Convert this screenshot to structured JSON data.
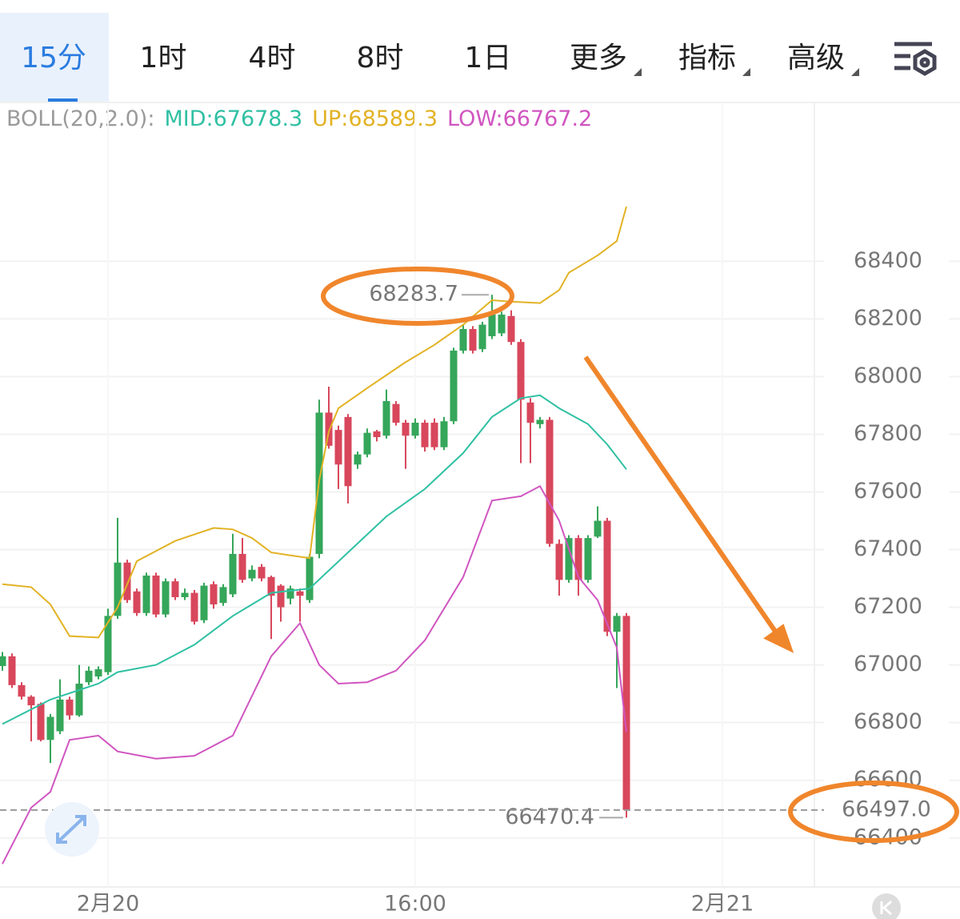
{
  "tabs": [
    "15分",
    "1时",
    "4时",
    "8时",
    "1日",
    "更多",
    "指标",
    "高级"
  ],
  "active_tab": 0,
  "chart_data": {
    "type": "candlestick",
    "indicator": "BOLL(20,2.0):",
    "candles": {
      "up_color": "#35a65a",
      "down_color": "#d8475c",
      "open": [
        66996,
        67030,
        66930,
        66890,
        66865,
        66740,
        66770,
        66880,
        66825,
        66940,
        66960,
        66975,
        67170,
        67355,
        67255,
        67180,
        67310,
        67175,
        67290,
        67235,
        67250,
        67155,
        67280,
        67215,
        67245,
        67385,
        67300,
        67340,
        67305,
        67275,
        67230,
        67255,
        67225,
        67385,
        67875,
        67815,
        67860,
        67695,
        67730,
        67810,
        67795,
        67905,
        67840,
        67795,
        67840,
        67840,
        67755,
        67845,
        68090,
        68165,
        68095,
        68140,
        68150,
        68210,
        68120,
        67910,
        67835,
        67850,
        67420,
        67295,
        67440,
        67295,
        67445,
        67500,
        67115,
        67170
      ],
      "high": [
        67045,
        67040,
        66940,
        66895,
        66870,
        66830,
        66950,
        66890,
        67000,
        66995,
        66995,
        67195,
        67510,
        67365,
        67265,
        67320,
        67320,
        67300,
        67300,
        67265,
        67260,
        67285,
        67290,
        67280,
        67455,
        67440,
        67345,
        67350,
        67310,
        67280,
        67275,
        67265,
        67385,
        67920,
        67965,
        67830,
        67870,
        67740,
        67820,
        67815,
        67955,
        67915,
        67850,
        67855,
        67850,
        67855,
        67860,
        68100,
        68180,
        68175,
        68190,
        68283.7,
        68225,
        68230,
        68130,
        67925,
        67860,
        67860,
        67435,
        67450,
        67450,
        67450,
        67550,
        67510,
        67180,
        67180
      ],
      "low": [
        66980,
        66920,
        66880,
        66735,
        66735,
        66660,
        66760,
        66810,
        66820,
        66930,
        66950,
        66965,
        67160,
        67215,
        67170,
        67170,
        67165,
        67165,
        67225,
        67225,
        67140,
        67145,
        67195,
        67205,
        67235,
        67285,
        67290,
        67290,
        67090,
        67150,
        67210,
        67150,
        67215,
        67370,
        67750,
        67610,
        67560,
        67680,
        67720,
        67775,
        67785,
        67830,
        67680,
        67785,
        67740,
        67745,
        67745,
        67835,
        68080,
        68080,
        68085,
        68130,
        68140,
        68110,
        67700,
        67700,
        67820,
        67410,
        67240,
        67285,
        67240,
        67285,
        67440,
        67100,
        66920,
        66470.4
      ],
      "close": [
        67030,
        66930,
        66890,
        66860,
        66740,
        66820,
        66880,
        66825,
        66935,
        66980,
        66985,
        67170,
        67355,
        67225,
        67180,
        67310,
        67175,
        67290,
        67235,
        67250,
        67150,
        67275,
        67210,
        67270,
        67385,
        67295,
        67330,
        67300,
        67240,
        67200,
        67265,
        67240,
        67375,
        67875,
        67760,
        67695,
        67620,
        67730,
        67805,
        67790,
        67915,
        67840,
        67795,
        67840,
        67755,
        67755,
        67845,
        68090,
        68165,
        68090,
        68180,
        68215,
        68215,
        68120,
        67920,
        67840,
        67850,
        67420,
        67295,
        67440,
        67295,
        67440,
        67500,
        67115,
        67170,
        66497
      ]
    },
    "bands": [
      {
        "label": "MID:67678.3",
        "color": "#2fc0a3",
        "x": [
          0,
          5,
          10,
          12,
          16,
          20,
          24,
          28,
          32,
          36,
          40,
          44,
          48,
          51,
          54,
          56,
          58,
          61,
          63,
          65
        ],
        "values": [
          66795,
          66880,
          66935,
          66975,
          67000,
          67070,
          67170,
          67250,
          67265,
          67390,
          67515,
          67610,
          67735,
          67860,
          67925,
          67935,
          67890,
          67835,
          67765,
          67678.3
        ]
      },
      {
        "label": "UP:68589.3",
        "color": "#e2b224",
        "x": [
          0,
          3,
          5,
          7,
          10,
          12,
          14,
          18,
          22,
          24,
          26,
          28,
          30,
          32,
          33,
          34,
          35,
          38,
          42,
          45,
          48,
          51,
          53,
          56,
          58,
          59,
          62,
          64,
          65
        ],
        "values": [
          67280,
          67270,
          67210,
          67100,
          67095,
          67200,
          67360,
          67430,
          67475,
          67470,
          67440,
          67390,
          67380,
          67370,
          67640,
          67810,
          67890,
          67960,
          68050,
          68110,
          68180,
          68265,
          68260,
          68255,
          68300,
          68360,
          68420,
          68470,
          68589.3
        ]
      },
      {
        "label": "LOW:66767.2",
        "color": "#d055c0",
        "x": [
          0,
          3,
          5,
          7,
          10,
          12,
          16,
          20,
          24,
          28,
          31,
          33,
          35,
          38,
          41,
          44,
          48,
          51,
          54,
          56,
          58,
          60,
          62,
          64,
          65
        ],
        "values": [
          66310,
          66505,
          66560,
          66740,
          66755,
          66700,
          66675,
          66685,
          66755,
          67030,
          67145,
          67000,
          66935,
          66940,
          66980,
          67085,
          67305,
          67570,
          67585,
          67620,
          67500,
          67305,
          67225,
          67060,
          66767.2
        ]
      }
    ],
    "current_price": {
      "value": 66497,
      "label": "66497.0"
    },
    "xlim": [
      -0.25,
      85.58
    ],
    "xticks": [
      {
        "value": 11,
        "label": "2月20"
      },
      {
        "value": 43,
        "label": "16:00"
      },
      {
        "value": 75,
        "label": "2月21"
      }
    ],
    "ylim": [
      66230,
      68945
    ],
    "yticks": [
      66400,
      66600,
      66800,
      67000,
      67200,
      67400,
      67600,
      67800,
      68000,
      68200,
      68400
    ],
    "grid": true
  }
}
